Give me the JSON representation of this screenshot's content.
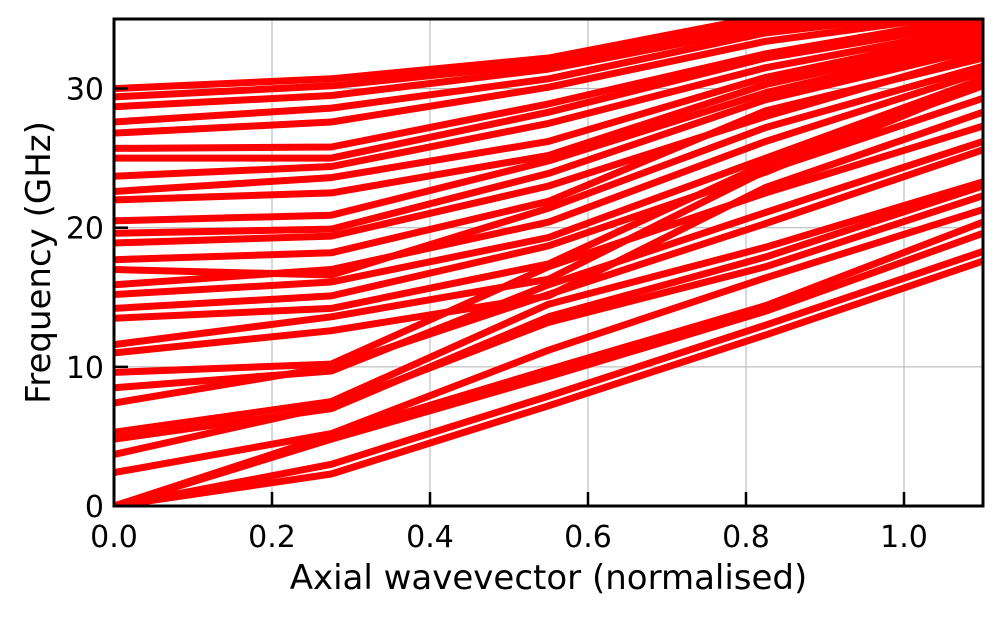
{
  "chart_data": {
    "type": "line",
    "title": "",
    "xlabel": "Axial wavevector (normalised)",
    "ylabel": "Frequency (GHz)",
    "xlim": [
      0,
      1.1
    ],
    "ylim": [
      0,
      35
    ],
    "xticks": [
      0.0,
      0.2,
      0.4,
      0.6,
      0.8,
      1.0
    ],
    "xtick_labels": [
      "0.0",
      "0.2",
      "0.4",
      "0.6",
      "0.8",
      "1.0"
    ],
    "yticks": [
      0,
      10,
      20,
      30
    ],
    "ytick_labels": [
      "0",
      "10",
      "20",
      "30"
    ],
    "grid": true,
    "legend": "none",
    "line_color": "#ff0000",
    "x": [
      0.0,
      0.275,
      0.55,
      0.825,
      1.1
    ],
    "series": [
      {
        "values": [
          0.0,
          2.3,
          7.2,
          12.3,
          17.6
        ]
      },
      {
        "values": [
          0.0,
          3.0,
          7.9,
          13.0,
          18.3
        ]
      },
      {
        "values": [
          0.0,
          4.8,
          9.3,
          14.0,
          19.6
        ]
      },
      {
        "values": [
          0.0,
          5.1,
          9.8,
          14.4,
          20.4
        ]
      },
      {
        "values": [
          2.4,
          5.2,
          11.2,
          16.4,
          21.3
        ]
      },
      {
        "values": [
          3.7,
          7.2,
          13.2,
          17.2,
          22.3
        ]
      },
      {
        "values": [
          4.8,
          7.0,
          13.6,
          17.9,
          23.0
        ]
      },
      {
        "values": [
          5.3,
          7.5,
          14.5,
          18.6,
          23.3
        ]
      },
      {
        "values": [
          7.4,
          10.0,
          15.2,
          20.3,
          25.6
        ]
      },
      {
        "values": [
          8.5,
          9.7,
          15.9,
          21.1,
          26.2
        ]
      },
      {
        "values": [
          9.6,
          10.2,
          17.2,
          22.5,
          27.3
        ]
      },
      {
        "values": [
          11.0,
          12.6,
          15.1,
          22.9,
          28.3
        ]
      },
      {
        "values": [
          11.6,
          13.6,
          16.3,
          24.1,
          29.3
        ]
      },
      {
        "values": [
          13.5,
          14.2,
          17.4,
          24.6,
          30.2
        ]
      },
      {
        "values": [
          14.2,
          15.1,
          18.7,
          24.0,
          30.4
        ]
      },
      {
        "values": [
          15.2,
          16.1,
          19.3,
          25.0,
          30.7
        ]
      },
      {
        "values": [
          15.9,
          17.0,
          20.4,
          26.2,
          31.2
        ]
      },
      {
        "values": [
          17.0,
          16.6,
          21.4,
          27.2,
          31.6
        ]
      },
      {
        "values": [
          17.7,
          18.2,
          21.9,
          28.4,
          32.2
        ]
      },
      {
        "values": [
          18.9,
          19.4,
          23.0,
          28.0,
          32.5
        ]
      },
      {
        "values": [
          19.6,
          19.9,
          23.9,
          29.2,
          32.9
        ]
      },
      {
        "values": [
          20.5,
          20.9,
          24.8,
          29.7,
          33.4
        ]
      },
      {
        "values": [
          22.0,
          22.5,
          25.2,
          30.3,
          33.7
        ]
      },
      {
        "values": [
          22.6,
          23.6,
          26.2,
          30.8,
          34.1
        ]
      },
      {
        "values": [
          23.7,
          24.4,
          27.5,
          31.5,
          34.4
        ]
      },
      {
        "values": [
          25.0,
          25.0,
          28.3,
          32.2,
          34.8
        ]
      },
      {
        "values": [
          25.7,
          25.8,
          28.9,
          32.5,
          35.2
        ]
      },
      {
        "values": [
          26.8,
          27.6,
          30.1,
          33.4,
          35.5
        ]
      },
      {
        "values": [
          27.6,
          28.6,
          30.7,
          34.0,
          35.8
        ]
      },
      {
        "values": [
          28.7,
          29.5,
          31.4,
          34.4,
          36.1
        ]
      },
      {
        "values": [
          29.4,
          30.2,
          31.8,
          34.8,
          36.4
        ]
      },
      {
        "values": [
          30.0,
          30.7,
          32.2,
          35.2,
          36.7
        ]
      }
    ]
  }
}
